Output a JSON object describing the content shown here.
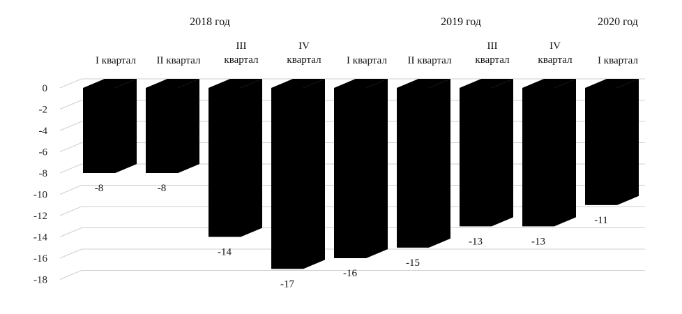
{
  "chart_data": {
    "type": "bar",
    "style": "3d-column",
    "bar_color": "#000000",
    "grid_color": "#cfcfcf",
    "grid": true,
    "legend": "none",
    "title": "",
    "xlabel": "",
    "ylabel": "",
    "ylim": [
      -18,
      0
    ],
    "yticks": [
      0,
      -2,
      -4,
      -6,
      -8,
      -10,
      -12,
      -14,
      -16,
      -18
    ],
    "groups": [
      {
        "label": "2018 год",
        "start": 0,
        "end": 3
      },
      {
        "label": "2019 год",
        "start": 4,
        "end": 7
      },
      {
        "label": "2020 год",
        "start": 8,
        "end": 8
      }
    ],
    "categories": [
      [
        "I квартал"
      ],
      [
        "II квартал"
      ],
      [
        "III",
        "квартал"
      ],
      [
        "IV",
        "квартал"
      ],
      [
        "I квартал"
      ],
      [
        "II квартал"
      ],
      [
        "III",
        "квартал"
      ],
      [
        "IV",
        "квартал"
      ],
      [
        "I квартал"
      ]
    ],
    "values": [
      -8,
      -8,
      -14,
      -17,
      -16,
      -15,
      -13,
      -13,
      -11
    ],
    "data_labels": [
      "-8",
      "-8",
      "-14",
      "-17",
      "-16",
      "-15",
      "-13",
      "-13",
      "-11"
    ]
  }
}
